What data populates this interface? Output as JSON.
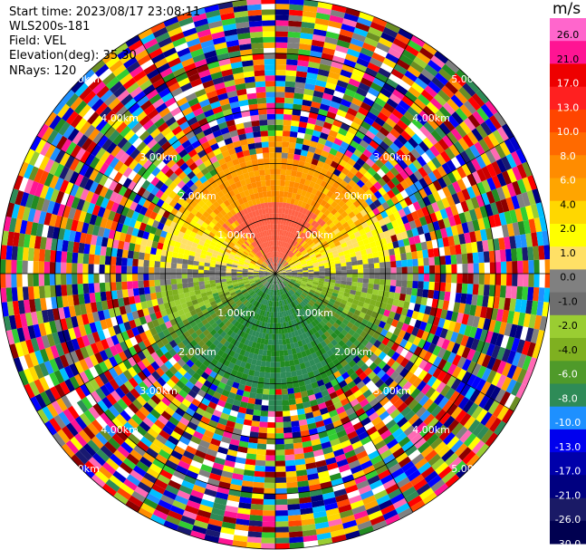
{
  "header": {
    "start_time": "Start time: 2023/08/17 23:08:11",
    "instrument": "WLS200s-181",
    "field": "Field: VEL",
    "elevation": "Elevation(deg): 35.30",
    "nrays": "NRays: 120"
  },
  "chart_data": {
    "type": "heatmap",
    "projection": "polar-ppi",
    "field": "VEL",
    "units": "m/s",
    "range_rings_km": [
      1,
      2,
      3,
      4,
      5
    ],
    "range_ring_labels": [
      "1.00km",
      "2.00km",
      "3.00km",
      "4.00km",
      "5.00km"
    ],
    "n_rays": 120,
    "colorbar": {
      "unit_label": "m/s",
      "ticks": [
        "26.0",
        "21.0",
        "17.0",
        "13.0",
        "10.0",
        "8.0",
        "6.0",
        "4.0",
        "2.0",
        "1.0",
        "0.0",
        "-1.0",
        "-2.0",
        "-4.0",
        "-6.0",
        "-8.0",
        "-10.0",
        "-13.0",
        "-17.0",
        "-21.0",
        "-26.0",
        "-30.0"
      ],
      "colors": [
        "#ff66cc",
        "#ff1493",
        "#ee0000",
        "#ff2020",
        "#ff4500",
        "#ff6a00",
        "#ff8c00",
        "#ffa500",
        "#ffd700",
        "#ffff00",
        "#ffe066",
        "#808080",
        "#6e6e6e",
        "#9acd32",
        "#7fb020",
        "#4f9a2a",
        "#2e8b57",
        "#1e90ff",
        "#0000ee",
        "#0000aa",
        "#000080",
        "#1a1a66",
        "#000050"
      ]
    },
    "pattern": "Inside ~2.2 km: coherent velocity field — positive (yellow/orange/red, 2–17 m/s) to the north, near-zero grey along east–west, negative (green, -1 to -8 m/s) to the south. Beyond ~2.2 km: noisy random multicolor returns."
  }
}
